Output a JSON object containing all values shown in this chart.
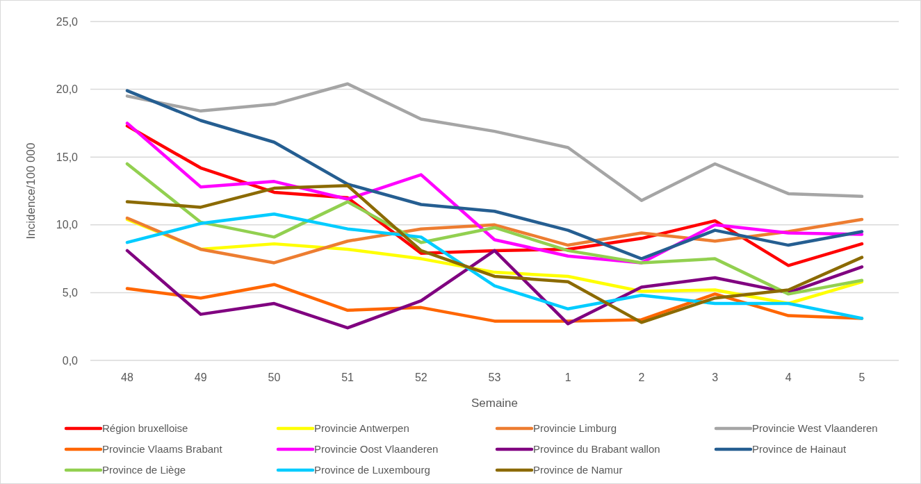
{
  "chart_data": {
    "type": "line",
    "xlabel": "Semaine",
    "ylabel": "Incidence/100 000",
    "categories": [
      "48",
      "49",
      "50",
      "51",
      "52",
      "53",
      "1",
      "2",
      "3",
      "4",
      "5"
    ],
    "ylim": [
      0,
      25
    ],
    "yticks": [
      {
        "value": 0,
        "label": "0,0"
      },
      {
        "value": 5,
        "label": "5,0"
      },
      {
        "value": 10,
        "label": "10,0"
      },
      {
        "value": 15,
        "label": "15,0"
      },
      {
        "value": 20,
        "label": "20,0"
      },
      {
        "value": 25,
        "label": "25,0"
      }
    ],
    "grid": "y",
    "legend": "bottom",
    "marker": "none",
    "line_style": "solid",
    "series": [
      {
        "name": "Région bruxelloise",
        "color": "#ff0000",
        "values": [
          17.3,
          14.2,
          12.4,
          12.0,
          7.9,
          8.1,
          8.2,
          9.0,
          10.3,
          7.0,
          8.6
        ]
      },
      {
        "name": "Provincie Antwerpen",
        "color": "#ffff00",
        "values": [
          10.4,
          8.2,
          8.6,
          8.2,
          7.5,
          6.5,
          6.2,
          5.1,
          5.2,
          4.2,
          5.8
        ]
      },
      {
        "name": "Provincie Limburg",
        "color": "#ed7d31",
        "values": [
          10.5,
          8.2,
          7.2,
          8.8,
          9.7,
          10.0,
          8.5,
          9.4,
          8.8,
          9.5,
          10.4
        ]
      },
      {
        "name": "Provincie West Vlaanderen",
        "color": "#a5a5a5",
        "values": [
          19.5,
          18.4,
          18.9,
          20.4,
          17.8,
          16.9,
          15.7,
          11.8,
          14.5,
          12.3,
          12.1
        ]
      },
      {
        "name": "Provincie Vlaams Brabant",
        "color": "#ff6600",
        "values": [
          5.3,
          4.6,
          5.6,
          3.7,
          3.9,
          2.9,
          2.9,
          3.0,
          4.9,
          3.3,
          3.1
        ]
      },
      {
        "name": "Provincie Oost Vlaanderen",
        "color": "#ff00ff",
        "values": [
          17.5,
          12.8,
          13.2,
          11.9,
          13.7,
          8.9,
          7.7,
          7.2,
          10.0,
          9.4,
          9.3
        ]
      },
      {
        "name": "Province du Brabant wallon",
        "color": "#800080",
        "values": [
          8.1,
          3.4,
          4.2,
          2.4,
          4.4,
          8.1,
          2.7,
          5.4,
          6.1,
          5.0,
          6.9
        ]
      },
      {
        "name": "Province de Hainaut",
        "color": "#255e91",
        "values": [
          19.9,
          17.7,
          16.1,
          13.0,
          11.5,
          11.0,
          9.6,
          7.5,
          9.6,
          8.5,
          9.5
        ]
      },
      {
        "name": "Province de Liège",
        "color": "#92d050",
        "values": [
          14.5,
          10.2,
          9.1,
          11.7,
          8.7,
          9.8,
          8.1,
          7.2,
          7.5,
          4.9,
          5.9
        ]
      },
      {
        "name": "Province de Luxembourg",
        "color": "#00ccff",
        "values": [
          8.7,
          10.1,
          10.8,
          9.7,
          9.1,
          5.5,
          3.8,
          4.8,
          4.2,
          4.2,
          3.1
        ]
      },
      {
        "name": "Province de Namur",
        "color": "#8b6a00",
        "values": [
          11.7,
          11.3,
          12.7,
          12.9,
          8.1,
          6.2,
          5.8,
          2.8,
          4.6,
          5.2,
          7.6
        ]
      }
    ]
  }
}
